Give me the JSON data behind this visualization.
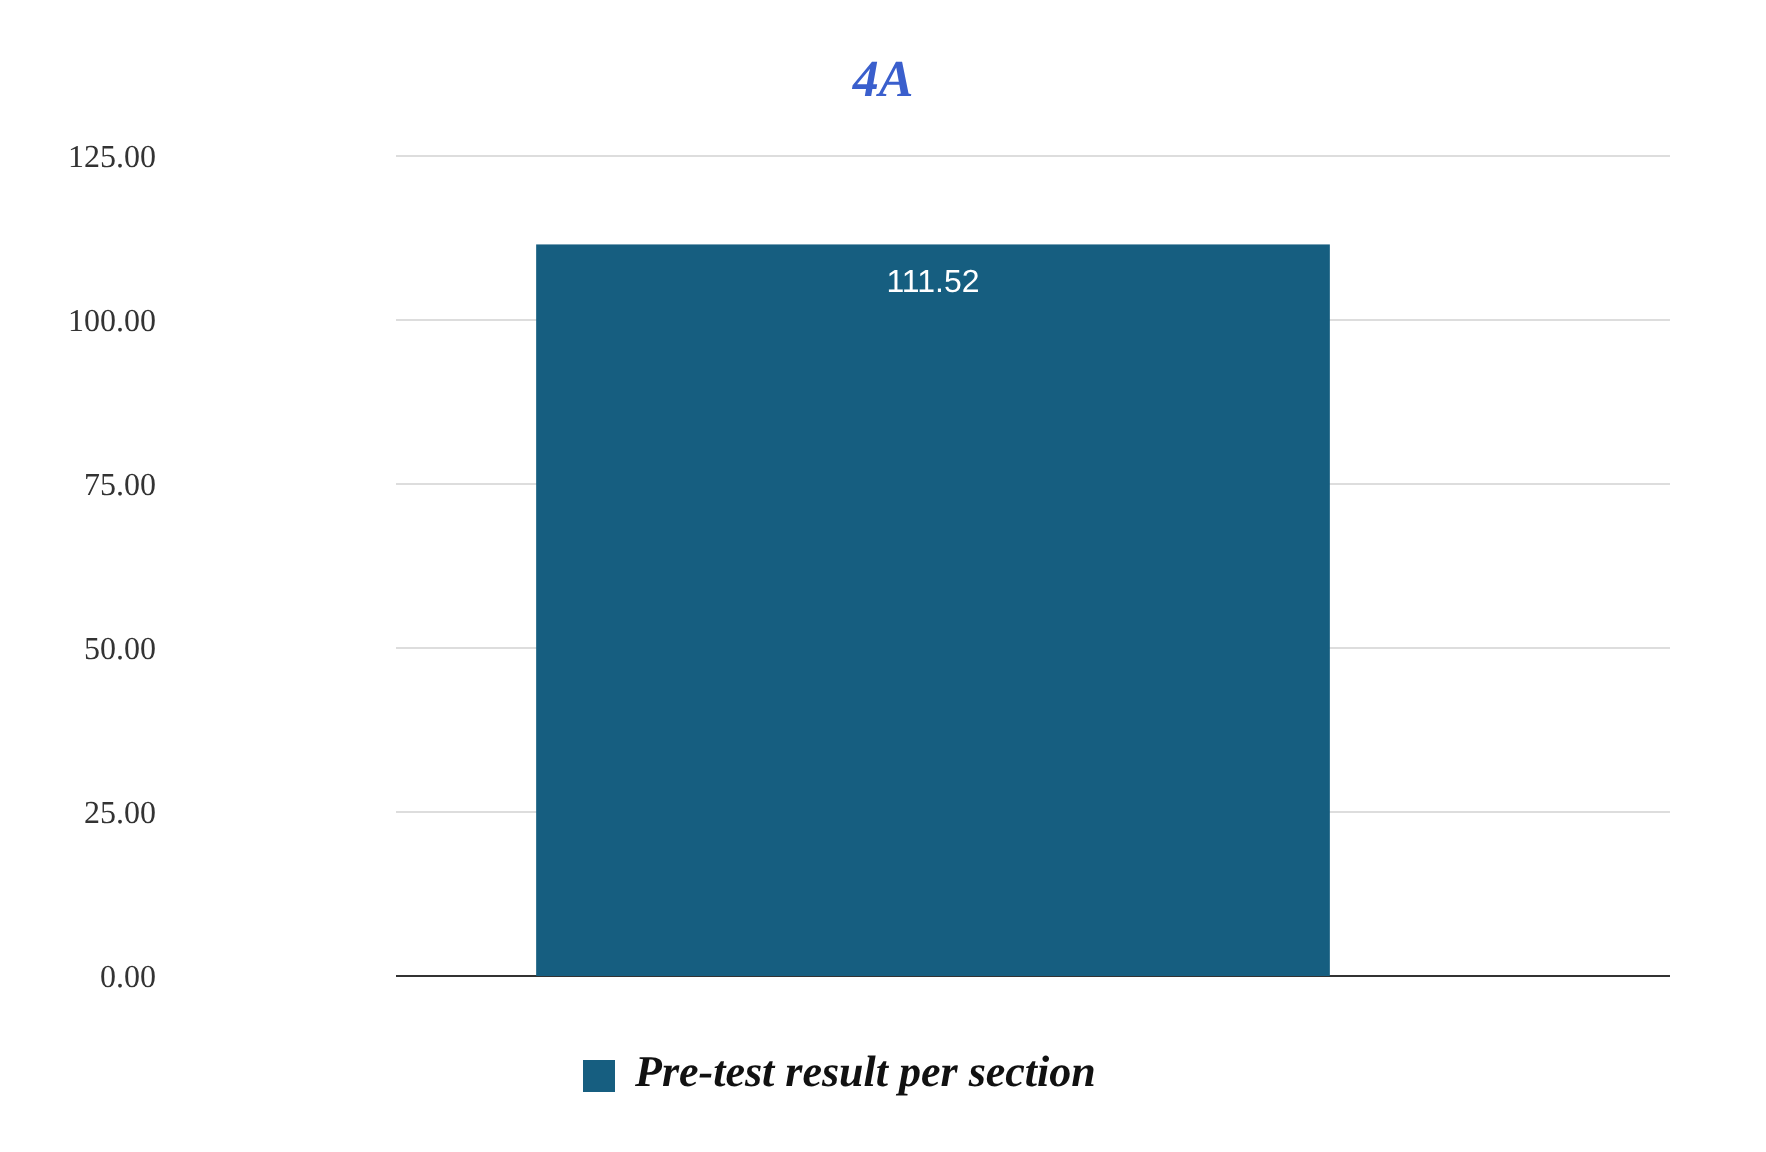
{
  "chart_data": {
    "type": "bar",
    "title": "4A",
    "categories": [
      null
    ],
    "series": [
      {
        "name": "Pre-test result per section",
        "color": "#165e80",
        "values": [
          111.52
        ]
      }
    ],
    "value_labels": [
      "111.52"
    ],
    "ylim": [
      0,
      125
    ],
    "yticks": [
      {
        "value": 0,
        "label": "0.00"
      },
      {
        "value": 25,
        "label": "25.00"
      },
      {
        "value": 50,
        "label": "50.00"
      },
      {
        "value": 75,
        "label": "75.00"
      },
      {
        "value": 100,
        "label": "100.00"
      },
      {
        "value": 125,
        "label": "125.00"
      }
    ],
    "grid": "y",
    "legend": "bottom"
  }
}
